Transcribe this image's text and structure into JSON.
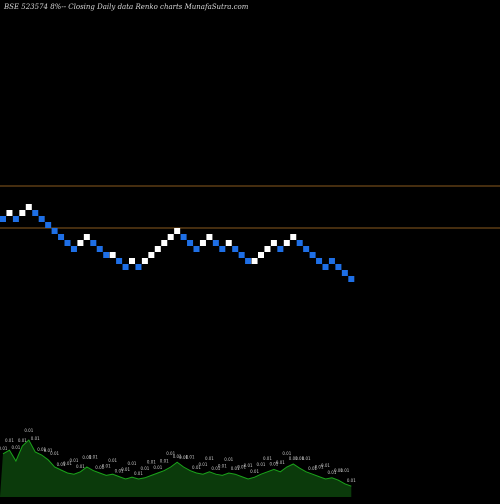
{
  "chart_data": {
    "type": "renko",
    "title": "BSE 523574  8%-- Closing Daily data  Renko  charts MunafaSutra.com",
    "colors": {
      "background": "#000000",
      "up_brick": "#ffffff",
      "down_brick": "#1e6fe6",
      "reference_line": "#8a5a1e",
      "volume_fill": "#0b3a0b",
      "volume_outline": "#1aa31a",
      "volume_label": "#c8c8c8"
    },
    "reference_levels": [
      {
        "name": "upper",
        "value": 5.5
      },
      {
        "name": "lower",
        "value": -1.5
      }
    ],
    "bricks": [
      {
        "d": "down",
        "lvl": 0
      },
      {
        "d": "up",
        "lvl": 1
      },
      {
        "d": "down",
        "lvl": 0
      },
      {
        "d": "up",
        "lvl": 1
      },
      {
        "d": "up",
        "lvl": 2
      },
      {
        "d": "down",
        "lvl": 1
      },
      {
        "d": "down",
        "lvl": 0
      },
      {
        "d": "down",
        "lvl": -1
      },
      {
        "d": "down",
        "lvl": -2
      },
      {
        "d": "down",
        "lvl": -3
      },
      {
        "d": "down",
        "lvl": -4
      },
      {
        "d": "down",
        "lvl": -5
      },
      {
        "d": "up",
        "lvl": -4
      },
      {
        "d": "up",
        "lvl": -3
      },
      {
        "d": "down",
        "lvl": -4
      },
      {
        "d": "down",
        "lvl": -5
      },
      {
        "d": "down",
        "lvl": -6
      },
      {
        "d": "up",
        "lvl": -6
      },
      {
        "d": "down",
        "lvl": -7
      },
      {
        "d": "down",
        "lvl": -8
      },
      {
        "d": "up",
        "lvl": -7
      },
      {
        "d": "down",
        "lvl": -8
      },
      {
        "d": "up",
        "lvl": -7
      },
      {
        "d": "up",
        "lvl": -6
      },
      {
        "d": "up",
        "lvl": -5
      },
      {
        "d": "up",
        "lvl": -4
      },
      {
        "d": "up",
        "lvl": -3
      },
      {
        "d": "up",
        "lvl": -2
      },
      {
        "d": "down",
        "lvl": -3
      },
      {
        "d": "down",
        "lvl": -4
      },
      {
        "d": "down",
        "lvl": -5
      },
      {
        "d": "up",
        "lvl": -4
      },
      {
        "d": "up",
        "lvl": -3
      },
      {
        "d": "down",
        "lvl": -4
      },
      {
        "d": "down",
        "lvl": -5
      },
      {
        "d": "up",
        "lvl": -4
      },
      {
        "d": "down",
        "lvl": -5
      },
      {
        "d": "down",
        "lvl": -6
      },
      {
        "d": "down",
        "lvl": -7
      },
      {
        "d": "up",
        "lvl": -7
      },
      {
        "d": "up",
        "lvl": -6
      },
      {
        "d": "up",
        "lvl": -5
      },
      {
        "d": "up",
        "lvl": -4
      },
      {
        "d": "down",
        "lvl": -5
      },
      {
        "d": "up",
        "lvl": -4
      },
      {
        "d": "up",
        "lvl": -3
      },
      {
        "d": "down",
        "lvl": -4
      },
      {
        "d": "down",
        "lvl": -5
      },
      {
        "d": "down",
        "lvl": -6
      },
      {
        "d": "down",
        "lvl": -7
      },
      {
        "d": "down",
        "lvl": -8
      },
      {
        "d": "down",
        "lvl": -7
      },
      {
        "d": "down",
        "lvl": -8
      },
      {
        "d": "down",
        "lvl": -9
      },
      {
        "d": "down",
        "lvl": -10
      }
    ],
    "volume": {
      "values": [
        0.72,
        0.78,
        0.6,
        0.85,
        0.95,
        0.75,
        0.7,
        0.62,
        0.5,
        0.45,
        0.4,
        0.38,
        0.42,
        0.5,
        0.44,
        0.4,
        0.36,
        0.38,
        0.34,
        0.3,
        0.33,
        0.3,
        0.32,
        0.36,
        0.4,
        0.44,
        0.5,
        0.58,
        0.5,
        0.44,
        0.4,
        0.38,
        0.42,
        0.38,
        0.36,
        0.4,
        0.38,
        0.34,
        0.3,
        0.33,
        0.38,
        0.42,
        0.46,
        0.42,
        0.5,
        0.55,
        0.48,
        0.42,
        0.38,
        0.34,
        0.3,
        0.32,
        0.28,
        0.22,
        0.18
      ],
      "labels_text": "0.01"
    }
  }
}
